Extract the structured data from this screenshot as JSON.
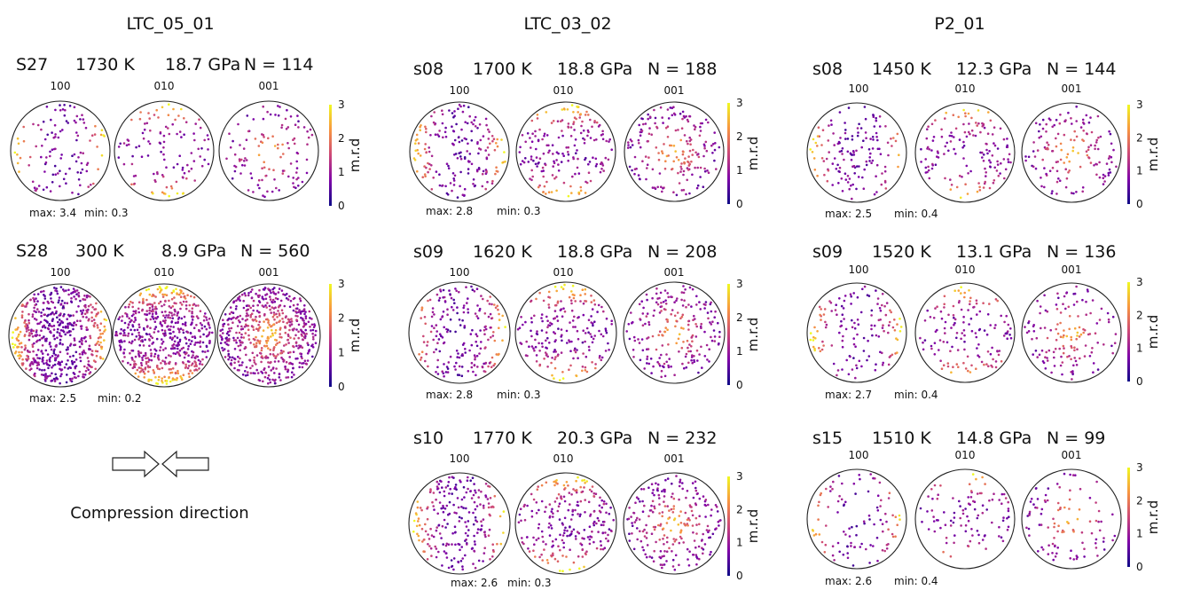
{
  "columns": [
    {
      "title": "LTC_05_01",
      "samples": [
        {
          "id": "S27",
          "temperature": "1730 K",
          "pressure": "18.7 GPa",
          "count": "N = 114",
          "max_label": "max: 3.4",
          "min_label": "min: 0.3",
          "points": 114
        },
        {
          "id": "S28",
          "temperature": "300 K",
          "pressure": "8.9 GPa",
          "count": "N = 560",
          "max_label": "max: 2.5",
          "min_label": "min: 0.2",
          "points": 560
        }
      ]
    },
    {
      "title": "LTC_03_02",
      "samples": [
        {
          "id": "s08",
          "temperature": "1700 K",
          "pressure": "18.8 GPa",
          "count": "N = 188",
          "max_label": "max: 2.8",
          "min_label": "min: 0.3",
          "points": 188
        },
        {
          "id": "s09",
          "temperature": "1620 K",
          "pressure": "18.8 GPa",
          "count": "N = 208",
          "max_label": "max: 2.8",
          "min_label": "min: 0.3",
          "points": 208
        },
        {
          "id": "s10",
          "temperature": "1770 K",
          "pressure": "20.3 GPa",
          "count": "N = 232",
          "max_label": "max: 2.6",
          "min_label": "min: 0.3",
          "points": 232
        }
      ]
    },
    {
      "title": "P2_01",
      "samples": [
        {
          "id": "s08",
          "temperature": "1450 K",
          "pressure": "12.3 GPa",
          "count": "N = 144",
          "max_label": "max: 2.5",
          "min_label": "min: 0.4",
          "points": 144
        },
        {
          "id": "s09",
          "temperature": "1520 K",
          "pressure": "13.1 GPa",
          "count": "N = 136",
          "max_label": "max: 2.7",
          "min_label": "min: 0.4",
          "points": 136
        },
        {
          "id": "s15",
          "temperature": "1510 K",
          "pressure": "14.8 GPa",
          "count": "N = 99",
          "max_label": "max: 2.6",
          "min_label": "min: 0.4",
          "points": 99
        }
      ]
    }
  ],
  "pole_labels": [
    "100",
    "010",
    "001"
  ],
  "colorbar": {
    "label": "m.r.d",
    "ticks": [
      "0",
      "1",
      "2",
      "3"
    ],
    "colors": [
      "#0d0887",
      "#7e03a8",
      "#cc4778",
      "#f89540",
      "#f0f921"
    ]
  },
  "compression_label": "Compression direction"
}
